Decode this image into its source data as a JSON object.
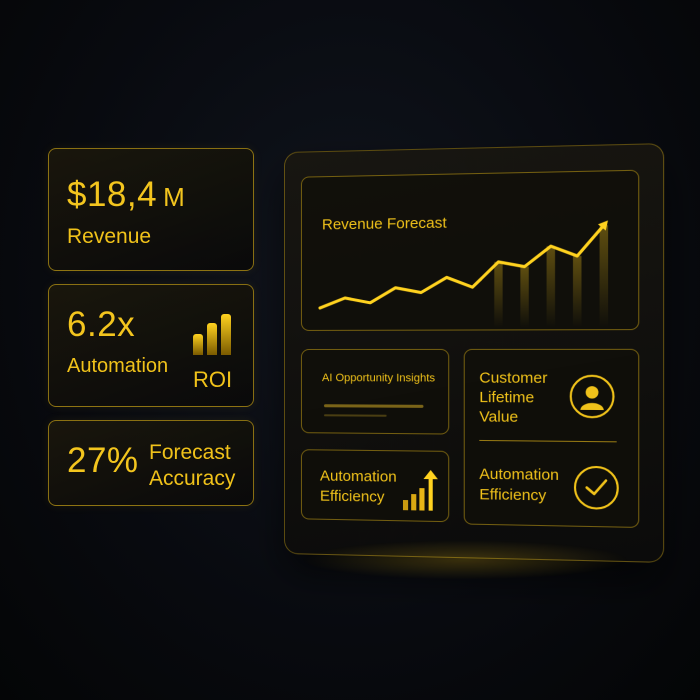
{
  "kpis": {
    "revenue": {
      "value": "$18,4",
      "unit": "M",
      "label": "Revenue"
    },
    "automation": {
      "value": "6.2x",
      "label": "Automation",
      "roi": "ROI",
      "bar_levels": [
        0.45,
        0.7,
        0.9
      ]
    },
    "forecast": {
      "value": "27%",
      "label_line1": "Forecast",
      "label_line2": "Accuracy"
    }
  },
  "panel": {
    "chart_title": "Revenue Forecast",
    "insights_title": "AI Opportunity Insights",
    "automation_efficiency_line1": "Automation",
    "automation_efficiency_line2": "Efficiency",
    "clv_line1": "Customer",
    "clv_line2": "Lifetime",
    "clv_line3": "Value",
    "right_automation_line1": "Automation",
    "right_automation_line2": "Efficiency"
  },
  "chart_data": {
    "type": "line",
    "title": "Revenue Forecast",
    "x": [
      0,
      1,
      2,
      3,
      4,
      5,
      6,
      7,
      8,
      9,
      10,
      11
    ],
    "values": [
      2,
      4,
      3,
      6,
      5,
      8,
      6,
      11,
      10,
      14,
      12,
      18
    ],
    "ylim": [
      0,
      20
    ]
  },
  "colors": {
    "accent": "#f0c21a",
    "background": "#07090d"
  },
  "icons": {
    "user": "user-avatar-icon",
    "check": "check-circle-icon",
    "trend": "trend-up-arrow-icon"
  }
}
